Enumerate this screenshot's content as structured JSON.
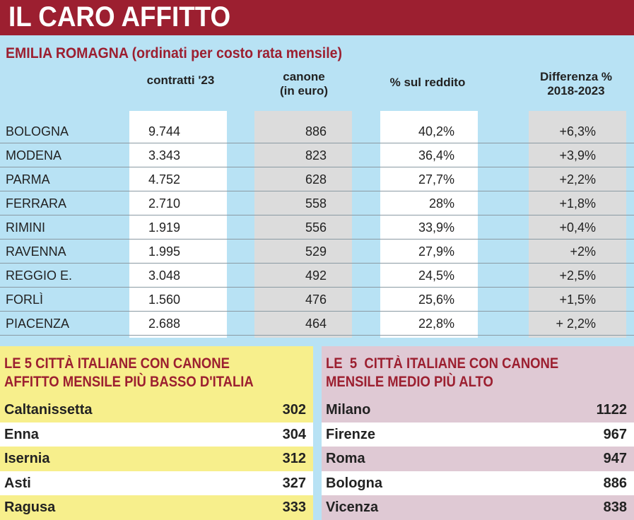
{
  "title": "IL CARO AFFITTO",
  "subtitle": "EMILIA ROMAGNA (ordinati per costo rata mensile)",
  "columns": [
    "contratti '23",
    "canone\n(in euro)",
    "% sul reddito",
    "Differenza %\n2018-2023"
  ],
  "rows": [
    {
      "city": "BOLOGNA",
      "contratti": "9.744",
      "canone": "886",
      "reddito": "40,2%",
      "diff": "+6,3%"
    },
    {
      "city": "MODENA",
      "contratti": "3.343",
      "canone": "823",
      "reddito": "36,4%",
      "diff": "+3,9%"
    },
    {
      "city": "PARMA",
      "contratti": "4.752",
      "canone": "628",
      "reddito": "27,7%",
      "diff": "+2,2%"
    },
    {
      "city": "FERRARA",
      "contratti": "2.710",
      "canone": "558",
      "reddito": "28%",
      "diff": "+1,8%"
    },
    {
      "city": "RIMINI",
      "contratti": "1.919",
      "canone": "556",
      "reddito": "33,9%",
      "diff": "+0,4%"
    },
    {
      "city": "RAVENNA",
      "contratti": "1.995",
      "canone": "529",
      "reddito": "27,9%",
      "diff": "+2%"
    },
    {
      "city": "REGGIO E.",
      "contratti": "3.048",
      "canone": "492",
      "reddito": "24,5%",
      "diff": "+2,5%"
    },
    {
      "city": "FORLÌ",
      "contratti": "1.560",
      "canone": "476",
      "reddito": "25,6%",
      "diff": "+1,5%"
    },
    {
      "city": "PIACENZA",
      "contratti": "2.688",
      "canone": "464",
      "reddito": "22,8%",
      "diff": "+ 2,2%"
    }
  ],
  "lowest": {
    "title": "LE 5 CITTÀ ITALIANE CON CANONE\nAFFITTO MENSILE PIÙ BASSO D'ITALIA",
    "items": [
      {
        "city": "Caltanissetta",
        "value": "302"
      },
      {
        "city": "Enna",
        "value": "304"
      },
      {
        "city": "Isernia",
        "value": "312"
      },
      {
        "city": "Asti",
        "value": "327"
      },
      {
        "city": "Ragusa",
        "value": "333"
      }
    ]
  },
  "highest": {
    "title": "LE  5  CITTÀ ITALIANE CON CANONE\nMENSILE MEDIO PIÙ ALTO",
    "items": [
      {
        "city": "Milano",
        "value": "1122"
      },
      {
        "city": "Firenze",
        "value": "967"
      },
      {
        "city": "Roma",
        "value": "947"
      },
      {
        "city": "Bologna",
        "value": "886"
      },
      {
        "city": "Vicenza",
        "value": "838"
      }
    ]
  },
  "colors": {
    "header": "#9c1f30",
    "background": "#b8e2f4",
    "lowest_panel": "#f7ef8c",
    "highest_panel": "#dfc9d4"
  }
}
